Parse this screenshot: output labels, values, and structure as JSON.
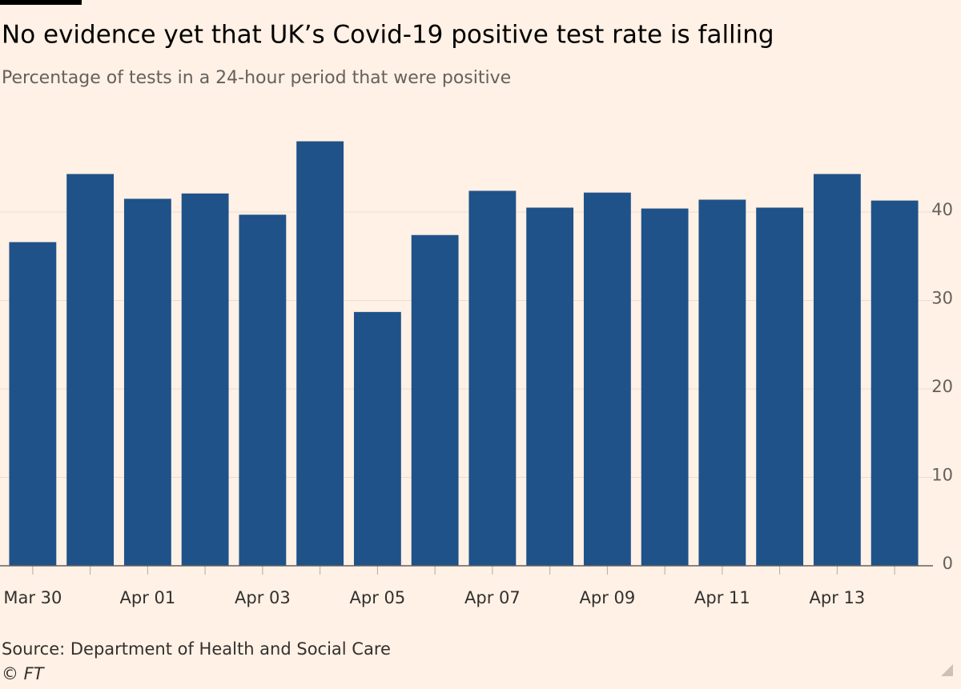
{
  "chart_data": {
    "type": "bar",
    "title": "No evidence yet that UK’s Covid-19 positive test rate is falling",
    "subtitle": "Percentage of tests in a 24-hour period that were positive",
    "source": "Source: Department of Health and Social Care",
    "credit": "© FT",
    "categories": [
      "Mar 30",
      null,
      "Apr 01",
      null,
      "Apr 03",
      null,
      "Apr 05",
      null,
      "Apr 07",
      null,
      "Apr 09",
      null,
      "Apr 11",
      null,
      "Apr 13",
      null
    ],
    "values": [
      36.6,
      44.3,
      41.5,
      42.1,
      39.7,
      48.0,
      28.7,
      37.4,
      42.4,
      40.5,
      42.2,
      40.4,
      41.4,
      40.5,
      44.3,
      41.3
    ],
    "color": "#1f5289",
    "ylim": [
      0,
      49.5
    ],
    "yticks": [
      0,
      10,
      20,
      30,
      40
    ],
    "grid": true,
    "y_axis_side": "right"
  }
}
